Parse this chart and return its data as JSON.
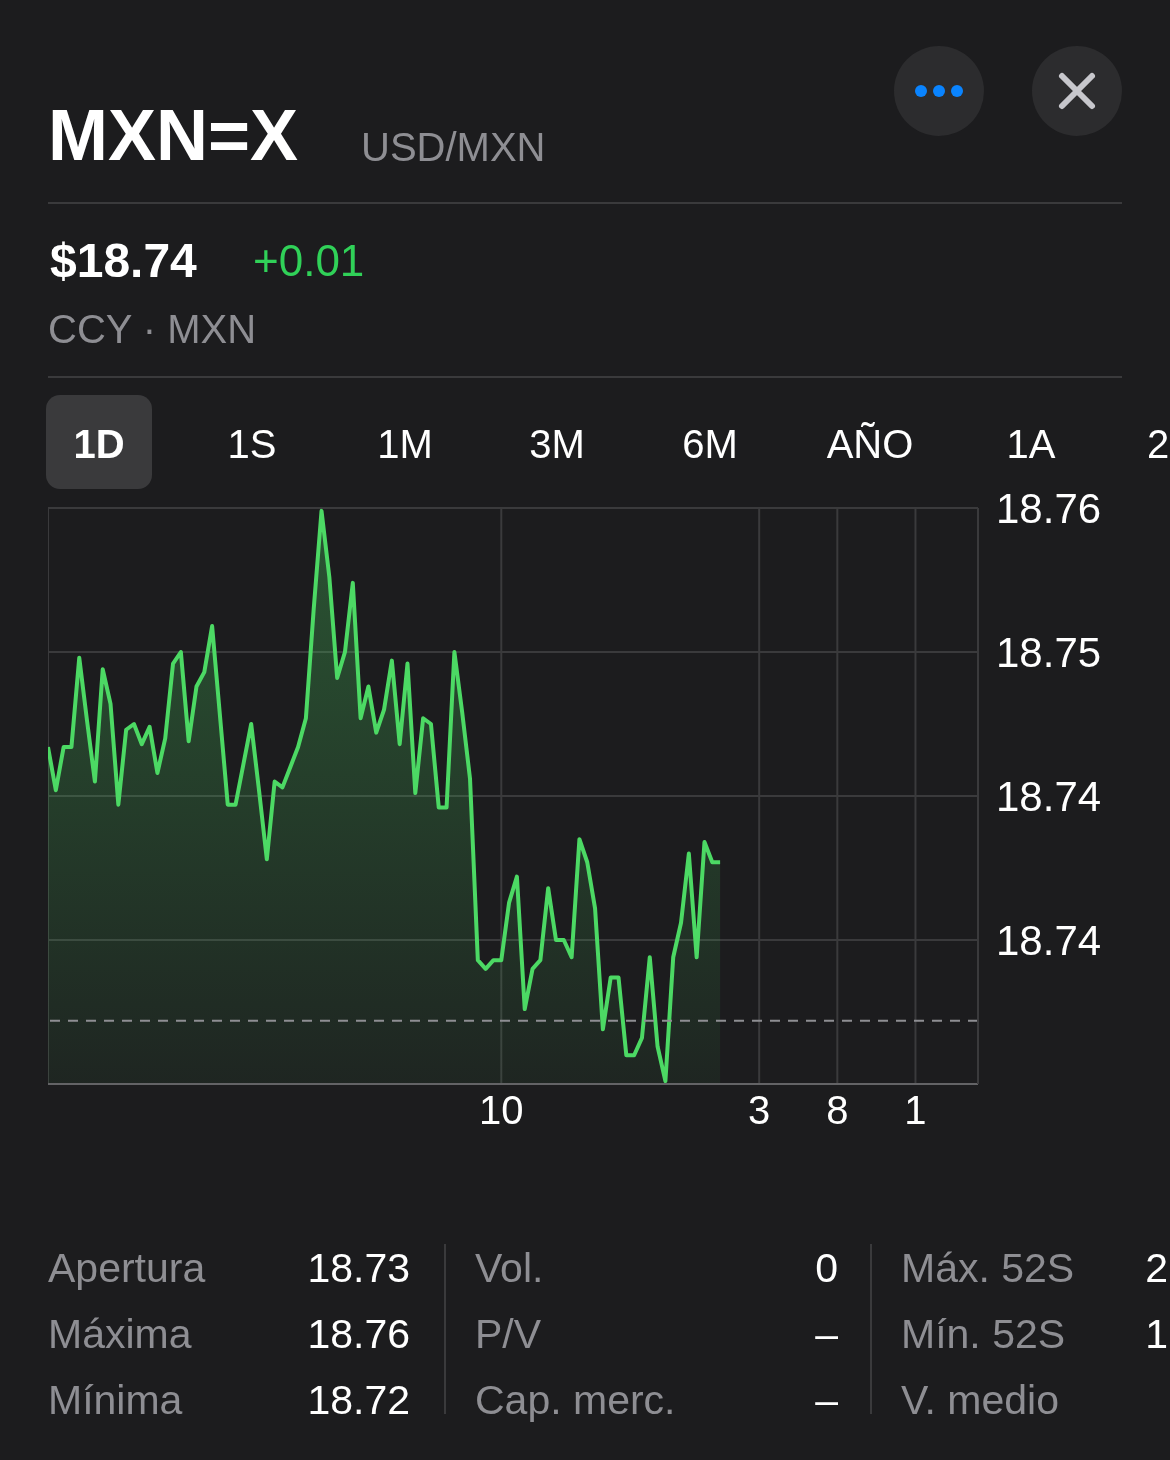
{
  "chart_data": {
    "type": "area",
    "title": "MXN=X",
    "subtitle": "USD/MXN",
    "categories": [
      null,
      null,
      null,
      null,
      null,
      null,
      null,
      null,
      null,
      null,
      null,
      null,
      null,
      null,
      null,
      null,
      null,
      null,
      null,
      null,
      null,
      null,
      null,
      null,
      null,
      null,
      null,
      null,
      null,
      null,
      null,
      null,
      null,
      null,
      null,
      null,
      null,
      null,
      null,
      null,
      null,
      null,
      null,
      null,
      null,
      null,
      null,
      null,
      null,
      null,
      null,
      null,
      null,
      null,
      null,
      null,
      null,
      null,
      "10",
      null,
      null,
      null,
      null,
      null,
      null,
      null,
      null,
      null,
      null,
      null,
      null,
      null,
      null,
      null,
      null,
      null,
      null,
      null,
      null,
      null,
      null,
      null,
      null,
      null,
      null,
      null,
      null,
      null,
      null,
      null,
      null,
      "3",
      null,
      null,
      null,
      null,
      null,
      null,
      null,
      null,
      null,
      "8",
      null,
      null,
      null,
      null,
      null,
      null,
      null,
      null,
      null,
      "1",
      null,
      null,
      null,
      null,
      null,
      null,
      null,
      null
    ],
    "series": [
      {
        "color": "#4cd964",
        "values": [
          18.7467,
          18.7452,
          18.7467,
          18.7467,
          18.7498,
          18.7476,
          18.7455,
          18.7494,
          18.7482,
          18.7447,
          18.7473,
          18.7475,
          18.7468,
          18.7474,
          18.7458,
          18.747,
          18.7496,
          18.75,
          18.7469,
          18.7488,
          18.7493,
          18.7509,
          18.7478,
          18.7447,
          18.7447,
          18.7461,
          18.7475,
          18.7452,
          18.7428,
          18.7455,
          18.7453,
          18.746,
          18.7467,
          18.7477,
          18.7515,
          18.7549,
          18.7526,
          18.7491,
          18.75,
          18.7524,
          18.7477,
          18.7488,
          18.7472,
          18.748,
          18.7497,
          18.7468,
          18.7496,
          18.7451,
          18.7477,
          18.7475,
          18.7446,
          18.7446,
          18.75,
          18.7479,
          18.7456,
          18.7393,
          18.739,
          18.7393,
          18.7393,
          18.7413,
          18.7422,
          18.7376,
          18.739,
          18.7393,
          18.7418,
          18.74,
          18.74,
          18.7394,
          18.7435,
          18.7427,
          18.7411,
          18.7369,
          18.7387,
          18.7387,
          18.736,
          18.736,
          18.7366,
          18.7394,
          18.7363,
          18.7351,
          18.7394,
          18.7406,
          18.743,
          18.7394,
          18.7434,
          18.7427,
          18.7427,
          null,
          null,
          null,
          null,
          null,
          null,
          null,
          null,
          null,
          null,
          null,
          null,
          null,
          null,
          null,
          null,
          null,
          null,
          null,
          null,
          null,
          null,
          null,
          null,
          null,
          null,
          null,
          null,
          null,
          null,
          null,
          null,
          null
        ]
      }
    ],
    "ylim": [
      18.735,
      18.755
    ],
    "yticks": [
      {
        "value": 18.755,
        "label": "18.76"
      },
      {
        "value": 18.75,
        "label": "18.75"
      },
      {
        "value": 18.745,
        "label": "18.74"
      },
      {
        "value": 18.74,
        "label": "18.74"
      }
    ],
    "grid": true,
    "ref_lines": [
      {
        "axis": "y",
        "value": 18.7372,
        "color": "#8e8e93",
        "line_style": "dashed"
      }
    ],
    "annotations": [
      "$18.74",
      "+0.01",
      "CCY · MXN",
      "1D",
      "1S",
      "1M",
      "3M",
      "6M",
      "AÑO",
      "1A",
      "2",
      "Apertura",
      "18.73",
      "Máxima",
      "18.76",
      "Mínima",
      "18.72",
      "Vol.",
      "0",
      "P/V",
      "–",
      "Cap. merc.",
      "–",
      "Máx. 52S",
      "2",
      "Mín. 52S",
      "1",
      "V. medio"
    ]
  }
}
